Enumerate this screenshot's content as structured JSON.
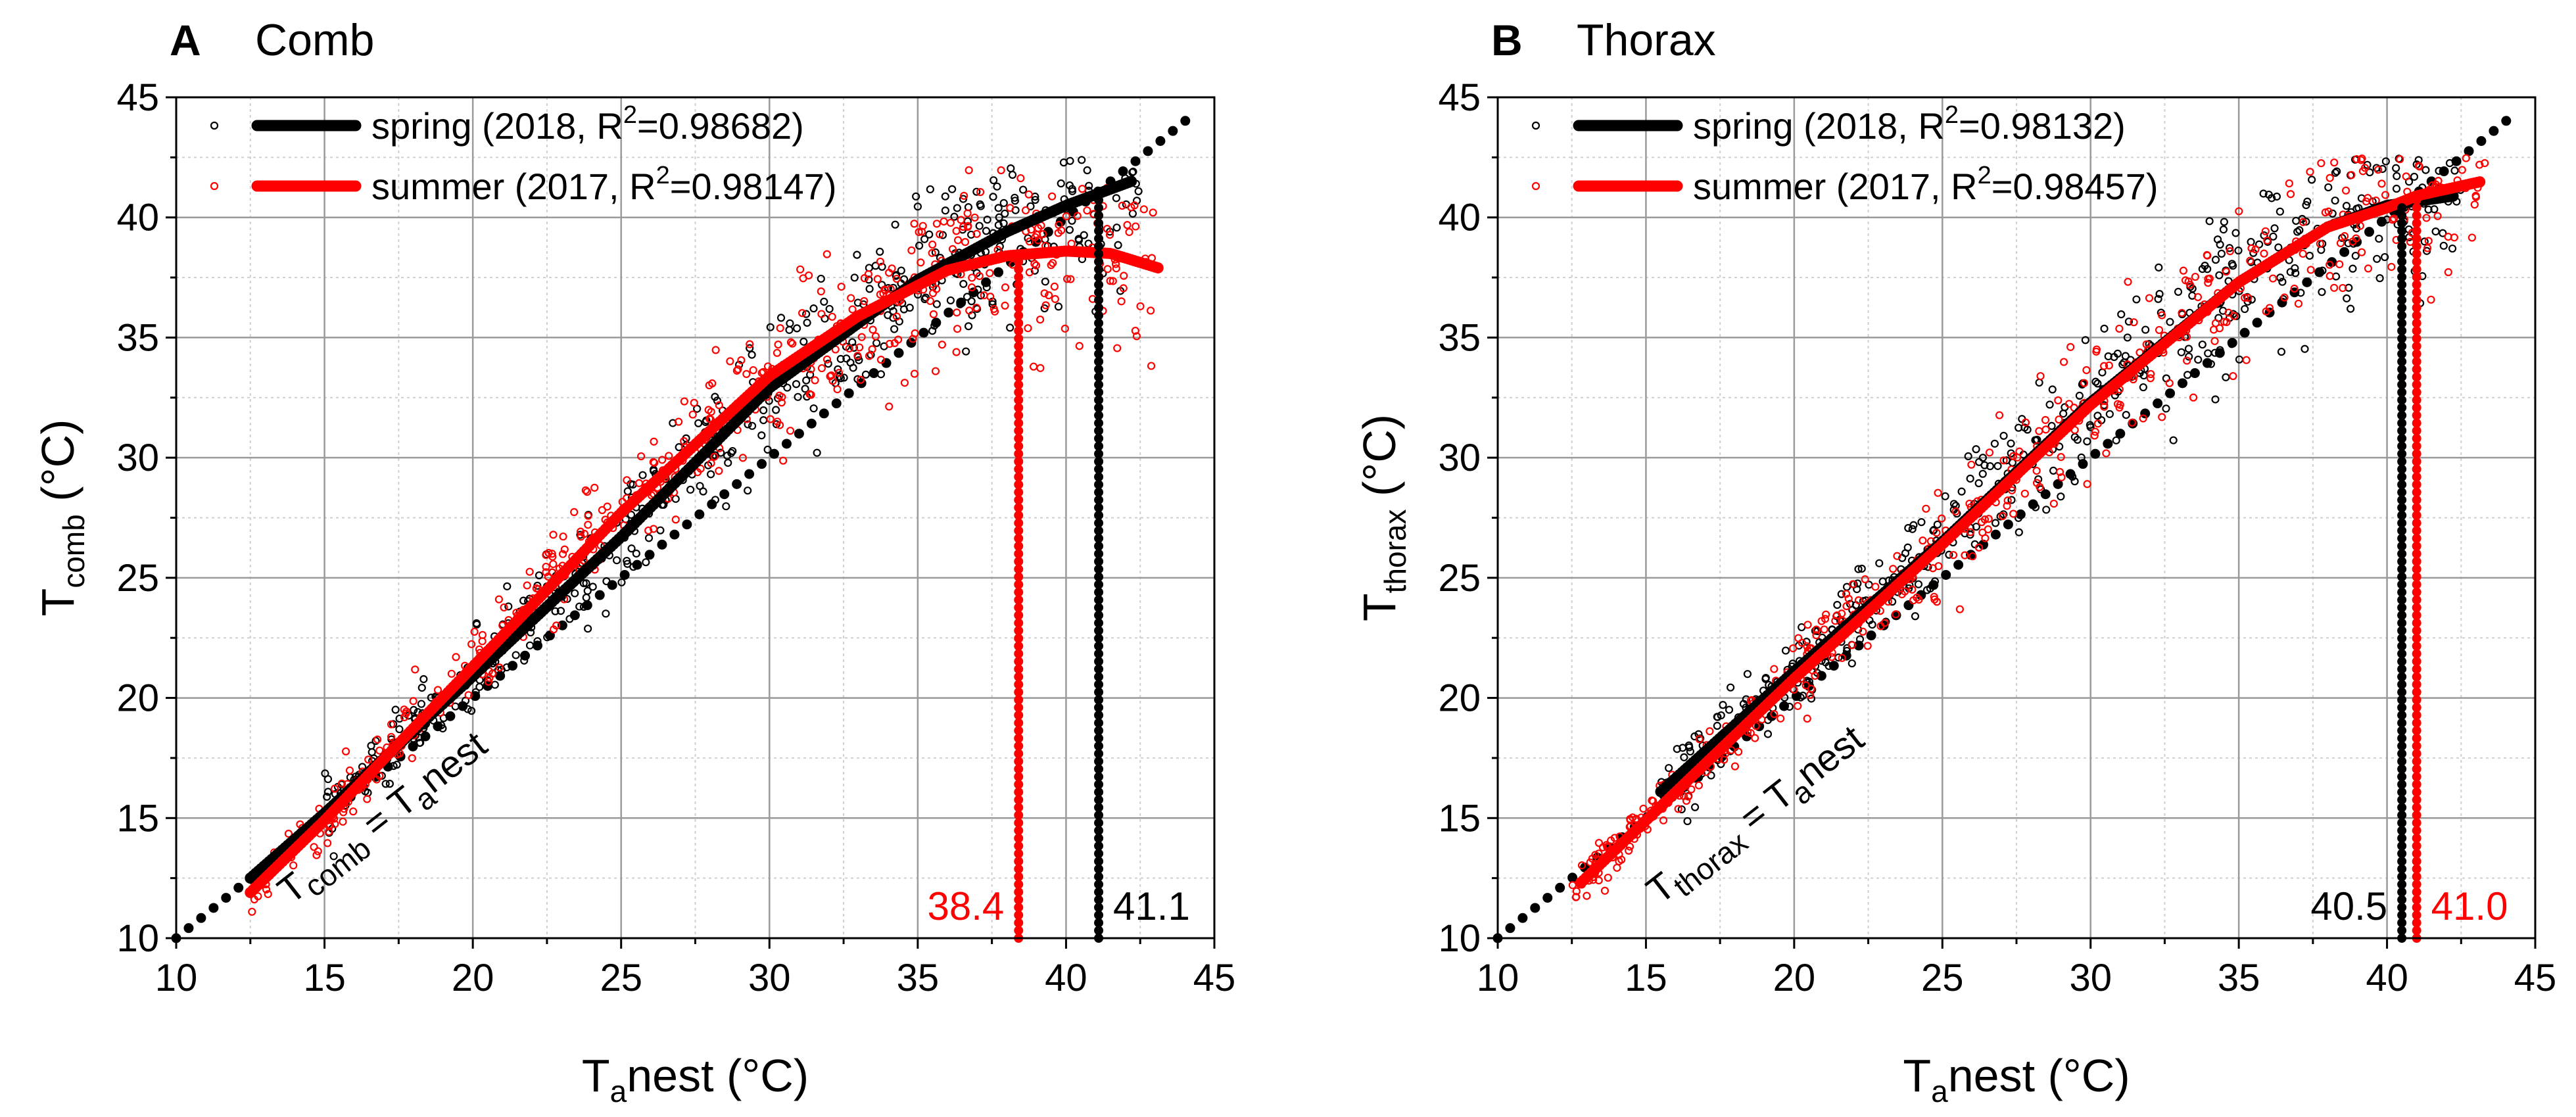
{
  "chart_data": [
    {
      "type": "scatter",
      "panel_letter": "A",
      "title": "Comb",
      "ylabel_main": "T",
      "ylabel_sub": "comb",
      "ylabel_unit": " (°C)",
      "xlabel_main": "T",
      "xlabel_sub": "a",
      "xlabel_unit": "nest (°C)",
      "xlim": [
        10,
        45
      ],
      "ylim": [
        10,
        45
      ],
      "xticks": [
        10,
        15,
        20,
        25,
        30,
        35,
        40,
        45
      ],
      "yticks": [
        10,
        15,
        20,
        25,
        30,
        35,
        40,
        45
      ],
      "grid": true,
      "legend_position": "top-left",
      "identity_line": {
        "x": [
          10,
          44.3
        ],
        "y": [
          10,
          44.3
        ],
        "label_lhs": "T",
        "label_lhs_sub": "comb",
        "label_eq": " = T",
        "label_rhs_sub": "a",
        "label_rhs": "nest"
      },
      "series": [
        {
          "name": "spring",
          "label": "spring (2018, R",
          "label_sup": "2",
          "label_end": "=0.98682)",
          "color": "#000000",
          "fit_x": [
            12.5,
            15,
            20,
            25,
            30,
            35,
            38,
            40,
            42.2
          ],
          "fit_y": [
            12.5,
            15.2,
            20.9,
            26.7,
            32.9,
            37.4,
            39.4,
            40.5,
            41.5
          ],
          "scatter_x_range": [
            15,
            42.5
          ],
          "crossing": "41.1"
        },
        {
          "name": "summer",
          "label": "summer (2017, R",
          "label_sup": "2",
          "label_end": "=0.98147)",
          "color": "#ff0000",
          "fit_x": [
            12.5,
            15,
            20,
            25,
            30,
            33,
            36,
            38,
            40,
            41.5,
            43.1
          ],
          "fit_y": [
            11.9,
            14.9,
            21.3,
            27.7,
            33.4,
            35.9,
            37.8,
            38.4,
            38.6,
            38.5,
            37.9
          ],
          "scatter_x_range": [
            12.5,
            43
          ],
          "crossing": "38.4"
        }
      ],
      "annotations": [
        {
          "text": "38.4",
          "color": "#ff0000",
          "x": 38.4
        },
        {
          "text": "41.1",
          "color": "#000000",
          "x": 41.1
        }
      ]
    },
    {
      "type": "scatter",
      "panel_letter": "B",
      "title": "Thorax",
      "ylabel_main": "T",
      "ylabel_sub": "thorax",
      "ylabel_unit": " (°C)",
      "xlabel_main": "T",
      "xlabel_sub": "a",
      "xlabel_unit": "nest (°C)",
      "xlim": [
        10,
        45
      ],
      "ylim": [
        10,
        45
      ],
      "xticks": [
        10,
        15,
        20,
        25,
        30,
        35,
        40,
        45
      ],
      "yticks": [
        10,
        15,
        20,
        25,
        30,
        35,
        40,
        45
      ],
      "grid": true,
      "legend_position": "top-left",
      "identity_line": {
        "x": [
          10,
          44.4
        ],
        "y": [
          10,
          44.4
        ],
        "label_lhs": "T",
        "label_lhs_sub": "thorax",
        "label_eq": " = T",
        "label_rhs_sub": "a",
        "label_rhs": "nest"
      },
      "series": [
        {
          "name": "spring",
          "label": "spring (2018, R",
          "label_sup": "2",
          "label_end": "=0.98132)",
          "color": "#000000",
          "fit_x": [
            15.5,
            20,
            25,
            30,
            35,
            38,
            40,
            42.3
          ],
          "fit_y": [
            16.1,
            21.1,
            26.5,
            32.3,
            37.3,
            39.6,
            40.5,
            40.9
          ],
          "scatter_x_range": [
            15.5,
            42.5
          ],
          "crossing": "40.5"
        },
        {
          "name": "summer",
          "label": "summer (2017, R",
          "label_sup": "2",
          "label_end": "=0.98457)",
          "color": "#ff0000",
          "fit_x": [
            12.8,
            15,
            20,
            25,
            30,
            35,
            38,
            40,
            41,
            43.2
          ],
          "fit_y": [
            12.3,
            14.9,
            20.8,
            26.4,
            32.2,
            37.3,
            39.6,
            40.4,
            40.9,
            41.5
          ],
          "scatter_x_range": [
            12.5,
            43.5
          ],
          "crossing": "41.0"
        }
      ],
      "annotations": [
        {
          "text": "40.5",
          "color": "#000000",
          "x": 40.5
        },
        {
          "text": "41.0",
          "color": "#ff0000",
          "x": 41.0
        }
      ]
    }
  ]
}
